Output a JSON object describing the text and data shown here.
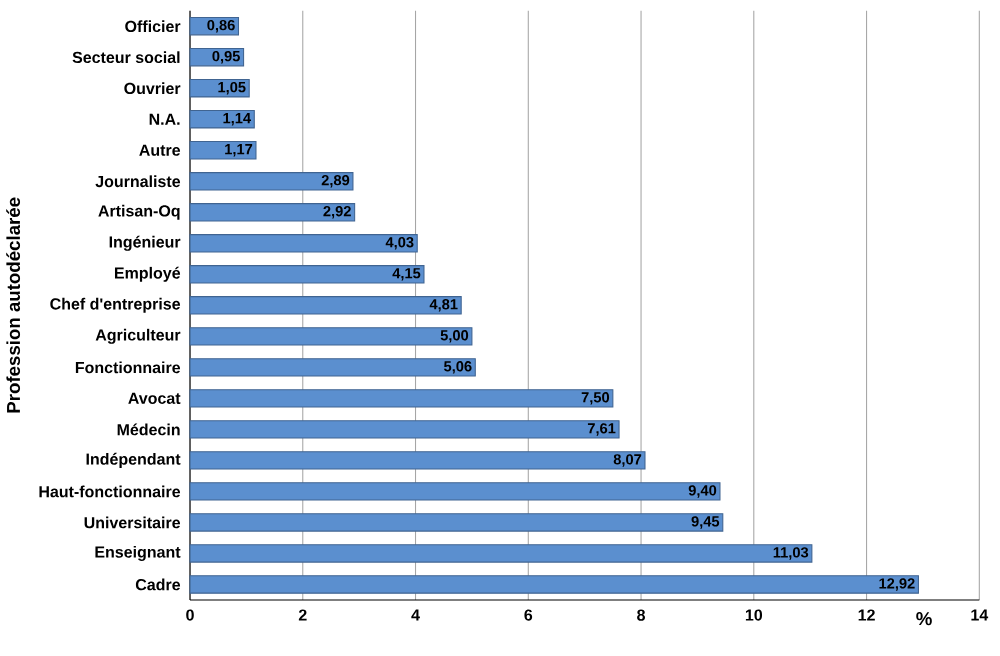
{
  "chart_data": {
    "type": "bar",
    "orientation": "horizontal",
    "ylabel": "Profession autodéclarée",
    "xlabel": "%",
    "categories": [
      "Officier",
      "Secteur social",
      "Ouvrier",
      "N.A.",
      "Autre",
      "Journaliste",
      "Artisan-Oq",
      "Ingénieur",
      "Employé",
      "Chef d'entreprise",
      "Agriculteur",
      "Fonctionnaire",
      "Avocat",
      "Médecin",
      "Indépendant",
      "Haut-fonctionnaire",
      "Universitaire",
      "Enseignant",
      "Cadre"
    ],
    "values": [
      0.86,
      0.95,
      1.05,
      1.14,
      1.17,
      2.89,
      2.92,
      4.03,
      4.15,
      4.81,
      5.0,
      5.06,
      7.5,
      7.61,
      8.07,
      9.4,
      9.45,
      11.03,
      12.92
    ],
    "value_labels": [
      "0,86",
      "0,95",
      "1,05",
      "1,14",
      "1,17",
      "2,89",
      "2,92",
      "4,03",
      "4,15",
      "4,81",
      "5,00",
      "5,06",
      "7,50",
      "7,61",
      "8,07",
      "9,40",
      "9,45",
      "11,03",
      "12,92"
    ],
    "color": "#5b8fcf",
    "xlim": [
      0,
      14
    ],
    "xticks": [
      0,
      2,
      4,
      6,
      8,
      10,
      12,
      14
    ],
    "grid": "x"
  }
}
